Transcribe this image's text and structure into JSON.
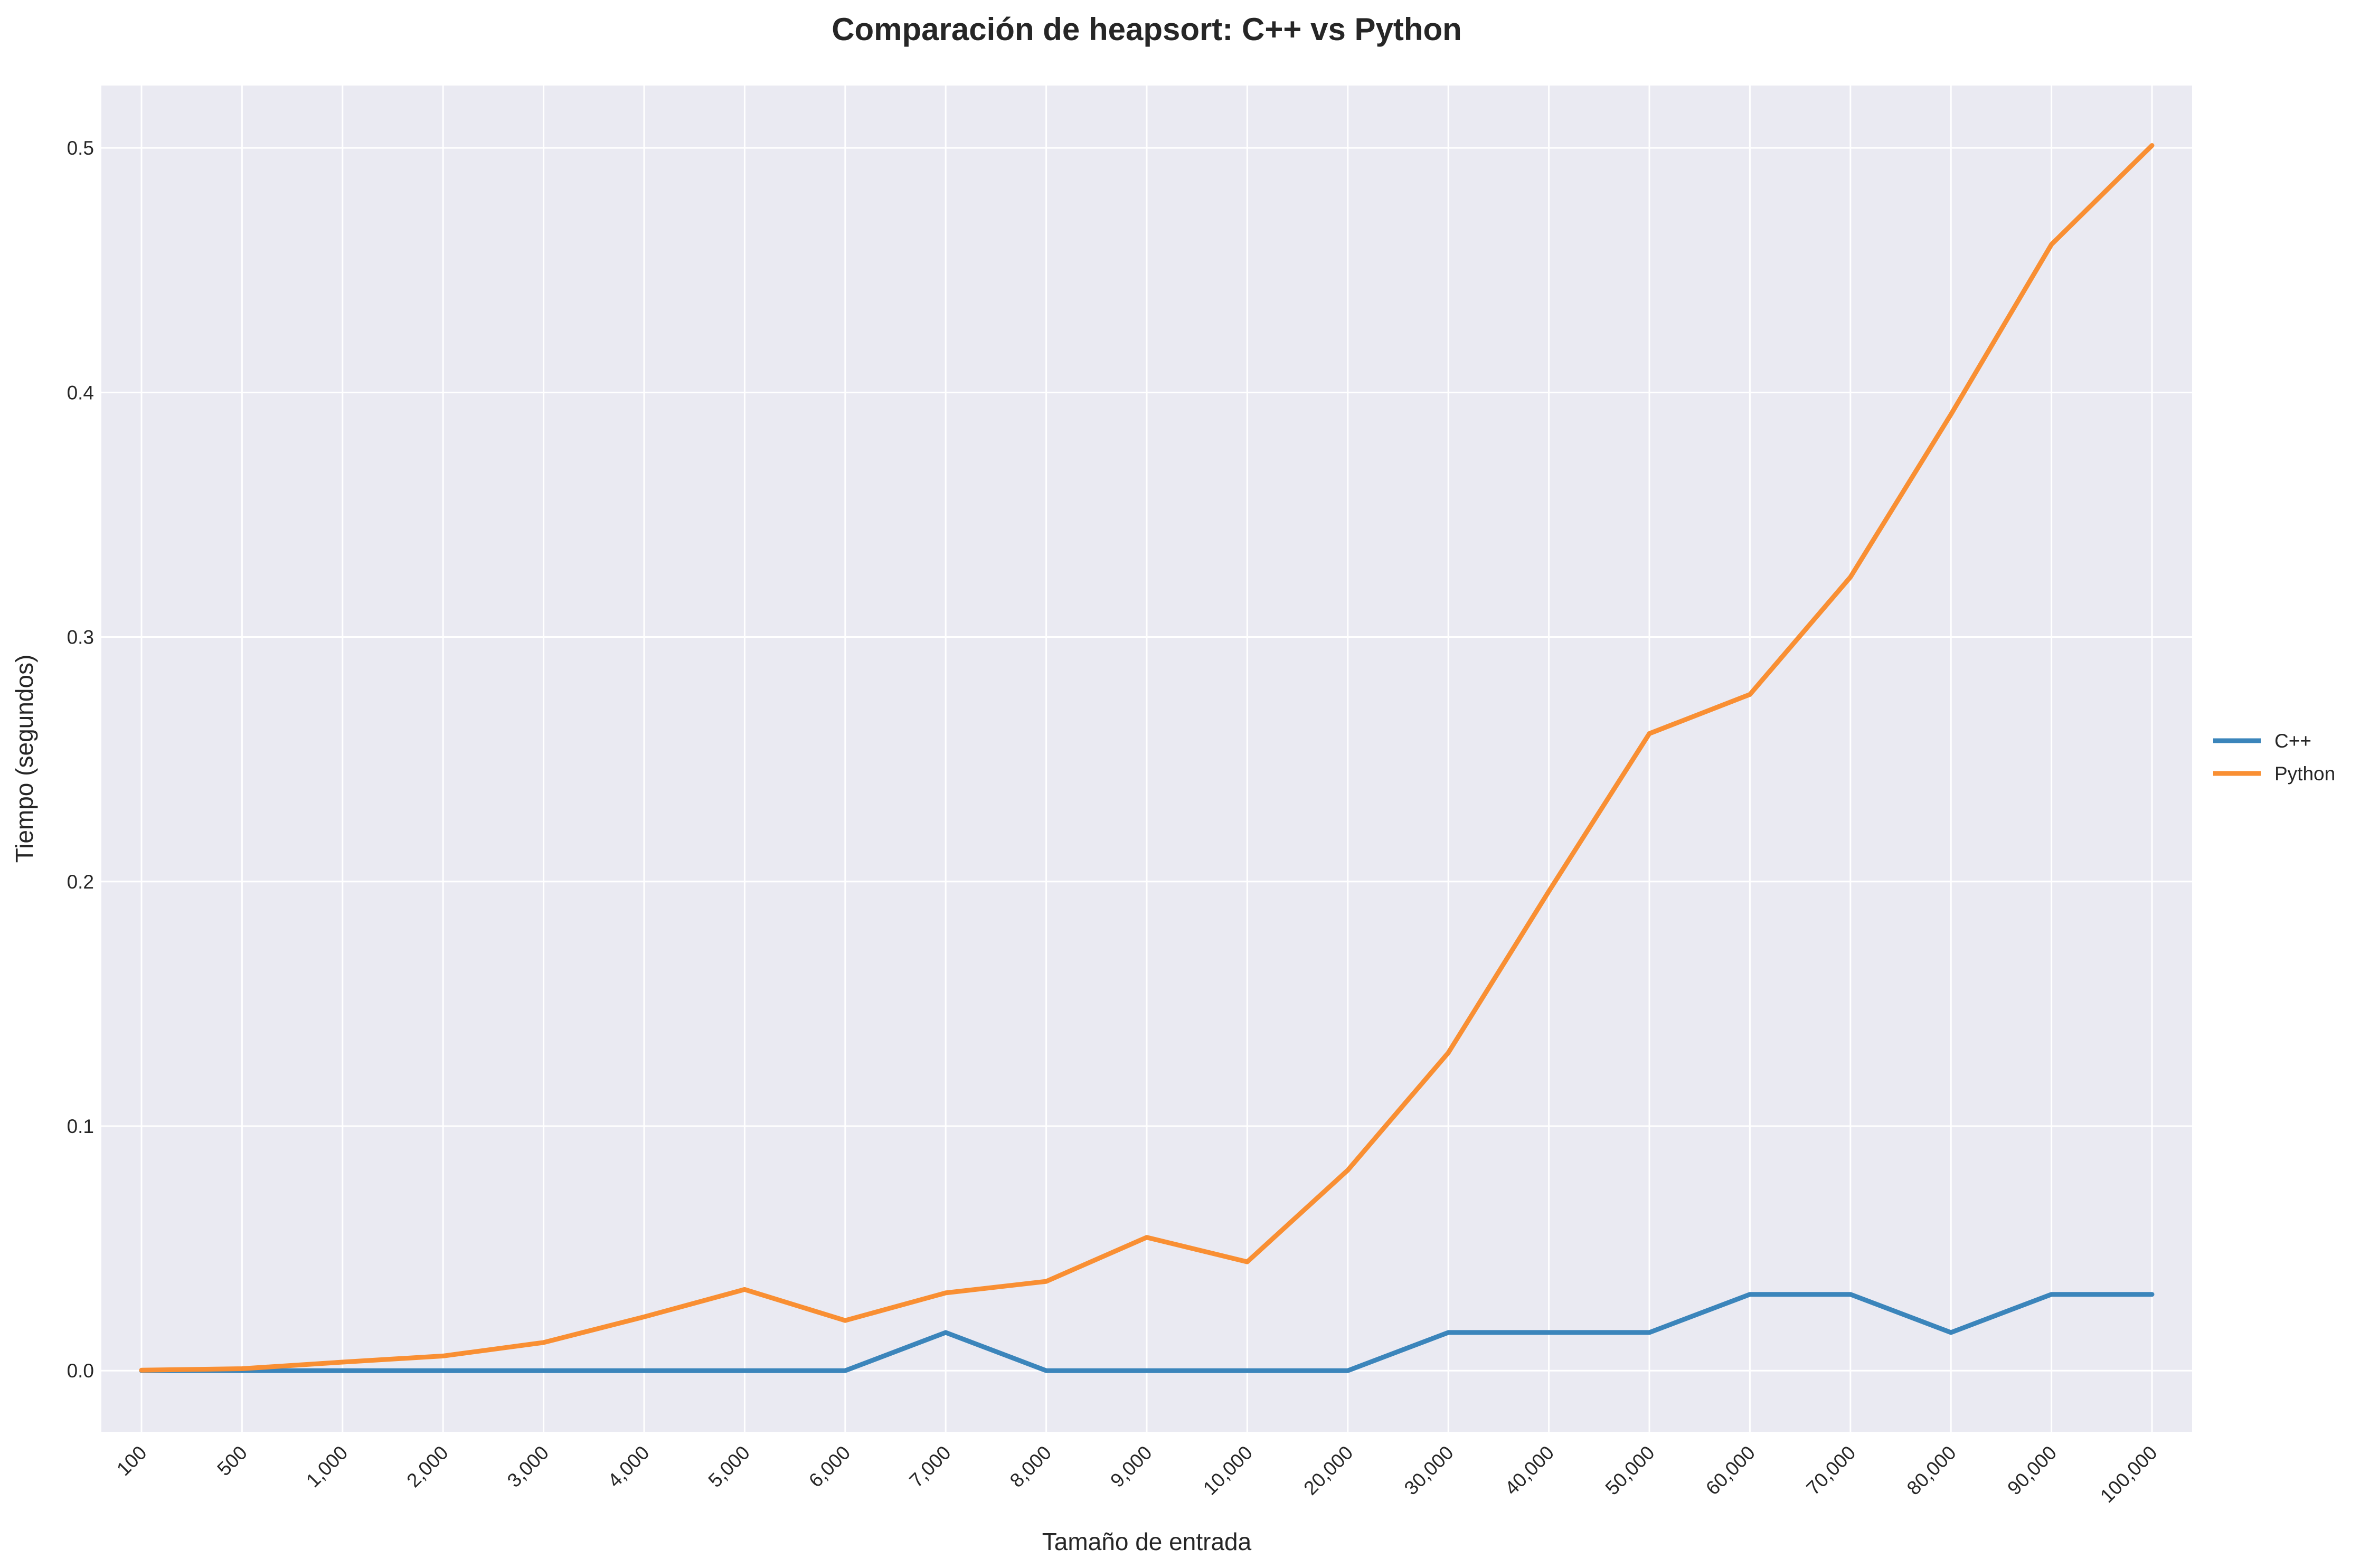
{
  "chart_data": {
    "type": "line",
    "title": "Comparación de heapsort: C++ vs Python",
    "xlabel": "Tamaño de entrada",
    "ylabel": "Tiempo (segundos)",
    "categories": [
      "100",
      "500",
      "1,000",
      "2,000",
      "3,000",
      "4,000",
      "5,000",
      "6,000",
      "7,000",
      "8,000",
      "9,000",
      "10,000",
      "20,000",
      "30,000",
      "40,000",
      "50,000",
      "60,000",
      "70,000",
      "80,000",
      "90,000",
      "100,000"
    ],
    "ylim": [
      -0.025,
      0.5255
    ],
    "yticks": [
      "0.0",
      "0.1",
      "0.2",
      "0.3",
      "0.4",
      "0.5"
    ],
    "grid": true,
    "legend_position": "right",
    "series": [
      {
        "name": "C++",
        "color": "#3b85bb",
        "values": [
          0,
          0,
          0,
          0,
          0,
          0,
          0,
          0,
          0.0156,
          0,
          0,
          0,
          0,
          0.0156,
          0.0156,
          0.0156,
          0.0312,
          0.0312,
          0.0156,
          0.0312,
          0.0312
        ]
      },
      {
        "name": "Python",
        "color": "#f98f33",
        "values": [
          0.0002,
          0.0008,
          0.0035,
          0.006,
          0.0115,
          0.022,
          0.0332,
          0.0205,
          0.0318,
          0.0365,
          0.0545,
          0.0445,
          0.082,
          0.13,
          0.196,
          0.2605,
          0.2765,
          0.3245,
          0.391,
          0.4605,
          0.501
        ]
      }
    ]
  }
}
